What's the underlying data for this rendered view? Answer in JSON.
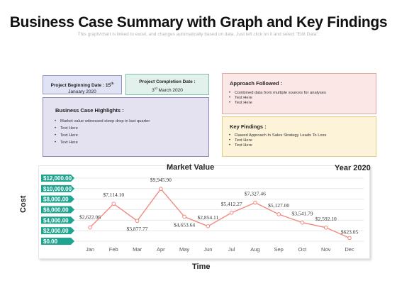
{
  "title": "Business Case Summary with Graph and Key Findings",
  "subtitle": "This graph/chart is linked to excel, and changes automatically based on data. Just left click on it and select \"Edit Data\".",
  "project_begin": {
    "label": "Project Beginning  Date : 15",
    "sup": "th",
    "date": "January 2020"
  },
  "project_end": {
    "label": "Project Completion Date :",
    "sup": "rd",
    "date_prefix": "3",
    "date": " March 2020"
  },
  "highlights": {
    "title": "Business Case Highlights :",
    "items": [
      "Market value witnessed  steep drop in last quarter",
      "Text Here",
      "Text Here",
      "Text Here"
    ]
  },
  "approach": {
    "title": "Approach Followed :",
    "items": [
      "Combined data from multiple sources for analyses",
      "Text Here",
      "Text Here"
    ]
  },
  "findings": {
    "title": "Key Findings :",
    "items": [
      "Flawed Approach In Sales Strategy Leads To Loss",
      "Text Here",
      "Text Here"
    ]
  },
  "colors": {
    "line": "#f08a7e",
    "marker": "#f08a7e",
    "tick_bg": "#1fa58f",
    "grid": "#e3e3e3"
  },
  "chart_data": {
    "type": "line",
    "title": "Market Value",
    "badge": "Year 2020",
    "xlabel": "Time",
    "ylabel": "Cost",
    "categories": [
      "Jan",
      "Feb",
      "Mar",
      "Apr",
      "May",
      "Jun",
      "Jul",
      "Aug",
      "Sep",
      "Oct",
      "Nov",
      "Dec"
    ],
    "values": [
      2622.06,
      7114.1,
      3877.77,
      9945.9,
      4653.64,
      2854.11,
      5412.27,
      7327.46,
      5127.0,
      3541.79,
      2592.1,
      623.05
    ],
    "value_labels": [
      "$2,622.06",
      "$7,114.10",
      "$3,877.77",
      "$9,945.90",
      "$4,653.64",
      "$2,854.11",
      "$5,412.27",
      "$7,327.46",
      "$5,127.00",
      "$3,541.79",
      "$2,592.10",
      "$623.05"
    ],
    "yticks": [
      "$12,000.00",
      "$10,000.00",
      "$8,000.00",
      "$6,000.00",
      "$4,000.00",
      "$2,000.00",
      "$0.00"
    ],
    "ylim": [
      0,
      12000
    ],
    "grid": true
  }
}
